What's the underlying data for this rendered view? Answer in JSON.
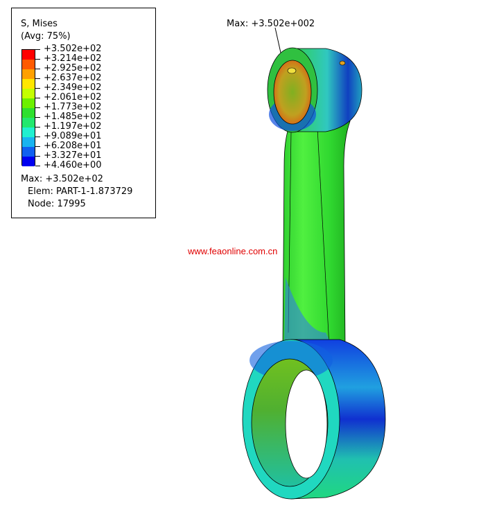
{
  "legend": {
    "title": "S, Mises",
    "subtitle": "(Avg: 75%)",
    "values": [
      "+3.502e+02",
      "+3.214e+02",
      "+2.925e+02",
      "+2.637e+02",
      "+2.349e+02",
      "+2.061e+02",
      "+1.773e+02",
      "+1.485e+02",
      "+1.197e+02",
      "+9.089e+01",
      "+6.208e+01",
      "+3.327e+01",
      "+4.460e+00"
    ],
    "colors": [
      "#ff0000",
      "#ff5a00",
      "#ffa000",
      "#ffe600",
      "#c4ff00",
      "#6cf000",
      "#2ee02e",
      "#22e86e",
      "#20f0d0",
      "#18b4f0",
      "#1060f0",
      "#0000f0"
    ],
    "max_line": "Max: +3.502e+02",
    "elem_line": "Elem: PART-1-1.873729",
    "node_line": "Node: 17995"
  },
  "annotation": {
    "max_label": "Max: +3.502e+002"
  },
  "watermark": "www.feaonline.com.cn"
}
